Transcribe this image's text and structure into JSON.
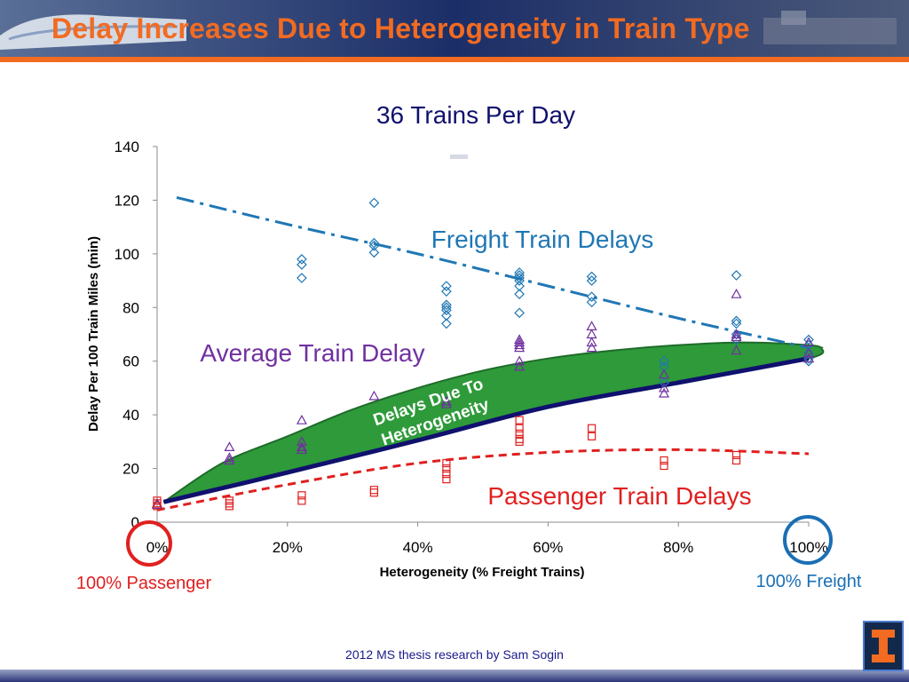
{
  "slide": {
    "title": "Delay Increases Due to Heterogeneity in Train Type",
    "footer": "2012 MS thesis research by Sam Sogin"
  },
  "annotations": {
    "freight_label": "Freight Train Delays",
    "average_label": "Average Train Delay",
    "passenger_label": "Passenger Train Delays",
    "band_label_line1": "Delays Due To",
    "band_label_line2": "Heterogeneity",
    "left_end_label": "100% Passenger",
    "right_end_label": "100% Freight"
  },
  "colors": {
    "accent_orange": "#f26b21",
    "freight": "#1f77b4",
    "average": "#7030a0",
    "passenger": "#e02020",
    "average_line": "#10106e",
    "band_fill": "#2e9a3a",
    "band_edge": "#1f6b2a",
    "title_navy": "#10106e"
  },
  "chart_data": {
    "type": "scatter",
    "title": "36 Trains Per Day",
    "xlabel": "Heterogeneity  (% Freight Trains)",
    "ylabel": "Delay Per 100 Train Miles (min)",
    "xlim": [
      0,
      100
    ],
    "ylim": [
      0,
      140
    ],
    "xticks": [
      0,
      20,
      40,
      60,
      80,
      100
    ],
    "xtick_labels": [
      "0%",
      "20%",
      "40%",
      "60%",
      "80%",
      "100%"
    ],
    "yticks": [
      0,
      20,
      40,
      60,
      80,
      100,
      120,
      140
    ],
    "ytick_labels": [
      "0",
      "20",
      "40",
      "60",
      "80",
      "100",
      "120",
      "140"
    ],
    "grid": false,
    "legend": "none",
    "series": [
      {
        "key": "freight",
        "marker": "diamond",
        "points": [
          [
            22.2,
            98
          ],
          [
            22.2,
            96
          ],
          [
            22.2,
            91
          ],
          [
            33.3,
            119
          ],
          [
            33.3,
            104
          ],
          [
            33.3,
            103
          ],
          [
            33.3,
            100.5
          ],
          [
            44.4,
            88
          ],
          [
            44.4,
            86
          ],
          [
            44.4,
            81
          ],
          [
            44.4,
            80
          ],
          [
            44.4,
            79
          ],
          [
            44.4,
            77
          ],
          [
            44.4,
            74
          ],
          [
            55.6,
            93
          ],
          [
            55.6,
            92
          ],
          [
            55.6,
            91
          ],
          [
            55.6,
            90
          ],
          [
            55.6,
            88
          ],
          [
            55.6,
            85
          ],
          [
            55.6,
            78
          ],
          [
            66.7,
            91.5
          ],
          [
            66.7,
            90
          ],
          [
            66.7,
            84
          ],
          [
            66.7,
            82
          ],
          [
            77.8,
            60
          ],
          [
            77.8,
            58
          ],
          [
            77.8,
            52
          ],
          [
            88.9,
            92
          ],
          [
            88.9,
            75
          ],
          [
            88.9,
            74
          ],
          [
            88.9,
            70
          ],
          [
            88.9,
            68
          ],
          [
            100,
            68
          ],
          [
            100,
            66
          ],
          [
            100,
            63
          ],
          [
            100,
            61
          ],
          [
            100,
            60
          ]
        ]
      },
      {
        "key": "average",
        "marker": "triangle",
        "points": [
          [
            0,
            7
          ],
          [
            0,
            6.5
          ],
          [
            11.1,
            28
          ],
          [
            11.1,
            24
          ],
          [
            11.1,
            23
          ],
          [
            22.2,
            38
          ],
          [
            22.2,
            30
          ],
          [
            22.2,
            28
          ],
          [
            22.2,
            27
          ],
          [
            33.3,
            47
          ],
          [
            44.4,
            45
          ],
          [
            44.4,
            44
          ],
          [
            55.6,
            68
          ],
          [
            55.6,
            67
          ],
          [
            55.6,
            66
          ],
          [
            55.6,
            65
          ],
          [
            55.6,
            60
          ],
          [
            55.6,
            58
          ],
          [
            66.7,
            73
          ],
          [
            66.7,
            70
          ],
          [
            66.7,
            67
          ],
          [
            66.7,
            65
          ],
          [
            77.8,
            55
          ],
          [
            77.8,
            50
          ],
          [
            77.8,
            48
          ],
          [
            88.9,
            85
          ],
          [
            88.9,
            70
          ],
          [
            88.9,
            69
          ],
          [
            88.9,
            64
          ],
          [
            100,
            67
          ],
          [
            100,
            63
          ],
          [
            100,
            61
          ]
        ]
      },
      {
        "key": "passenger",
        "marker": "square",
        "points": [
          [
            0,
            8
          ],
          [
            0,
            7
          ],
          [
            0,
            6
          ],
          [
            11.1,
            8
          ],
          [
            11.1,
            7
          ],
          [
            11.1,
            6
          ],
          [
            22.2,
            10
          ],
          [
            22.2,
            8
          ],
          [
            33.3,
            12
          ],
          [
            33.3,
            11
          ],
          [
            44.4,
            22
          ],
          [
            44.4,
            20
          ],
          [
            44.4,
            18
          ],
          [
            44.4,
            16
          ],
          [
            55.6,
            38
          ],
          [
            55.6,
            35
          ],
          [
            55.6,
            33
          ],
          [
            55.6,
            31
          ],
          [
            55.6,
            30
          ],
          [
            66.7,
            35
          ],
          [
            66.7,
            32
          ],
          [
            77.8,
            23
          ],
          [
            77.8,
            21
          ],
          [
            88.9,
            25
          ],
          [
            88.9,
            23
          ]
        ]
      }
    ],
    "trend_lines": [
      {
        "key": "freight",
        "style": "dash-dot",
        "points": [
          [
            3,
            121
          ],
          [
            20,
            111
          ],
          [
            40,
            100
          ],
          [
            60,
            88
          ],
          [
            80,
            76
          ],
          [
            100,
            65
          ]
        ]
      },
      {
        "key": "passenger",
        "style": "dashed",
        "points": [
          [
            0,
            4.5
          ],
          [
            20,
            14
          ],
          [
            40,
            22
          ],
          [
            60,
            26
          ],
          [
            80,
            27
          ],
          [
            100,
            25.5
          ]
        ]
      },
      {
        "key": "average_line",
        "style": "solid",
        "points": [
          [
            1,
            7.5
          ],
          [
            20,
            18.5
          ],
          [
            40,
            30.5
          ],
          [
            60,
            43
          ],
          [
            80,
            52
          ],
          [
            100,
            61
          ]
        ]
      }
    ],
    "band": {
      "upper": [
        [
          1,
          7.5
        ],
        [
          10,
          22
        ],
        [
          20,
          32
        ],
        [
          30,
          42
        ],
        [
          40,
          50
        ],
        [
          50,
          56.5
        ],
        [
          60,
          61
        ],
        [
          70,
          64
        ],
        [
          80,
          66
        ],
        [
          90,
          67
        ],
        [
          100,
          66
        ],
        [
          102,
          65
        ]
      ],
      "lower": [
        [
          1,
          7.5
        ],
        [
          20,
          18.5
        ],
        [
          40,
          30.5
        ],
        [
          60,
          43
        ],
        [
          80,
          52
        ],
        [
          100,
          61
        ],
        [
          102,
          65
        ]
      ]
    }
  }
}
